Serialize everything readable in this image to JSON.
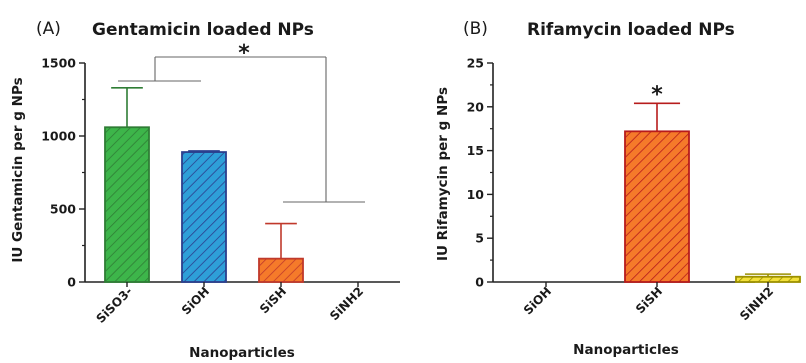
{
  "chart_data": [
    {
      "type": "bar",
      "panel_label": "(A)",
      "title": "Gentamicin loaded NPs",
      "xlabel": "Nanoparticles",
      "ylabel": "IU Gentamicin per g NPs",
      "ylim": [
        0,
        1500
      ],
      "yticks": [
        "0",
        "500",
        "1000",
        "1500"
      ],
      "categories": [
        "SiSO3-",
        "SiOH",
        "SiSH",
        "SiNH2"
      ],
      "values": [
        1060,
        890,
        160,
        0
      ],
      "errors": [
        270,
        8,
        240,
        0
      ],
      "colors": [
        "#3db54a",
        "#2e9fd8",
        "#f57a2a",
        "#f2c018"
      ],
      "edge_colors": [
        "#2f7d35",
        "#2b3f8e",
        "#c0392b",
        "#c9a000"
      ],
      "annotation": "*"
    },
    {
      "type": "bar",
      "panel_label": "(B)",
      "title": "Rifamycin loaded NPs",
      "xlabel": "Nanoparticles",
      "ylabel": "IU Rifamycin per g NPs",
      "ylim": [
        0,
        25
      ],
      "yticks": [
        "0",
        "5",
        "10",
        "15",
        "20",
        "25"
      ],
      "categories": [
        "SiOH",
        "SiSH",
        "SiNH2"
      ],
      "values": [
        0,
        17.2,
        0.6
      ],
      "errors": [
        0,
        3.2,
        0.3
      ],
      "colors": [
        "#2e9fd8",
        "#f57a2a",
        "#f2e03a"
      ],
      "edge_colors": [
        "#2b3f8e",
        "#b71c1c",
        "#9c9000"
      ],
      "annotation": "*"
    }
  ]
}
